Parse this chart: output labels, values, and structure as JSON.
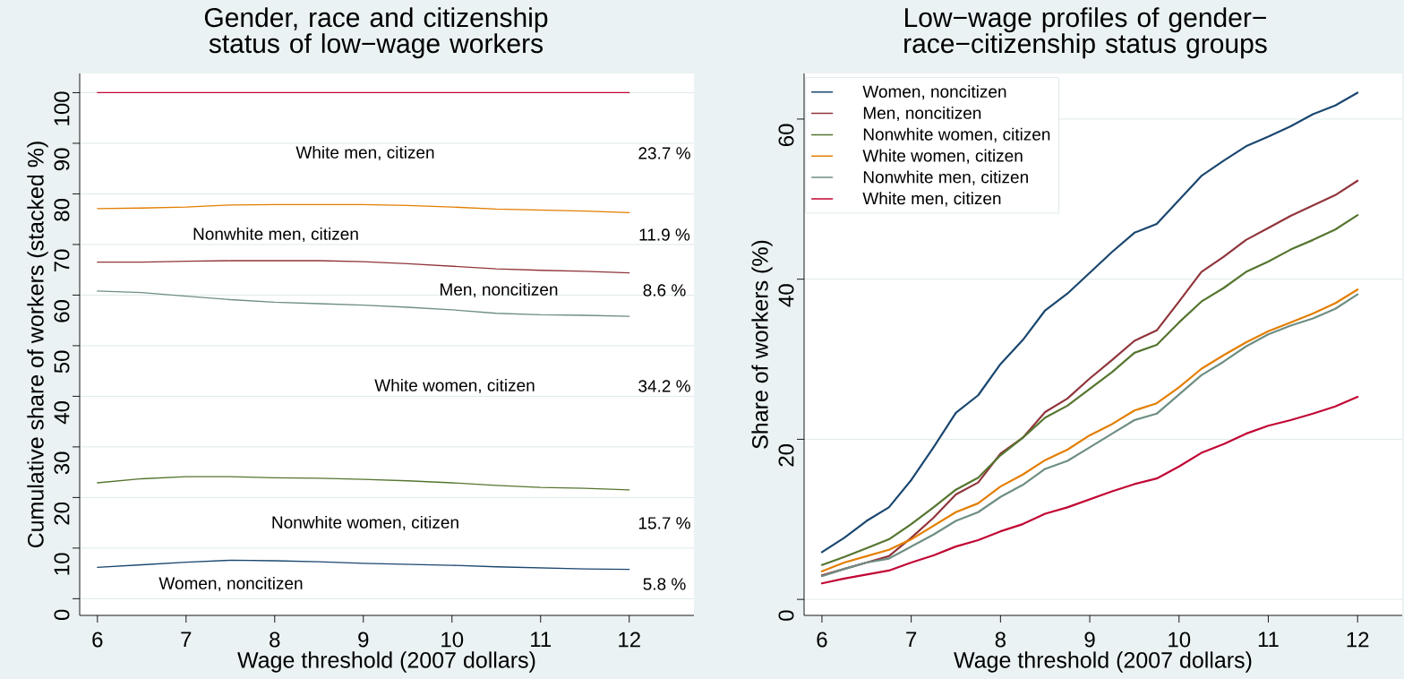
{
  "chart_data": [
    {
      "type": "line",
      "title": "Gender, race and citizenship status of low−wage workers",
      "xlabel": "Wage threshold (2007 dollars)",
      "ylabel": "Cumulative share of workers (stacked %)",
      "x": [
        6,
        6.5,
        7,
        7.5,
        8,
        8.5,
        9,
        9.5,
        10,
        10.5,
        11,
        11.5,
        12
      ],
      "series": [
        {
          "color": "#1a476f",
          "values": [
            6.2,
            6.7,
            7.2,
            7.6,
            7.5,
            7.3,
            7.0,
            6.8,
            6.6,
            6.3,
            6.1,
            5.9,
            5.8
          ]
        },
        {
          "color": "#55752f",
          "values": [
            22.9,
            23.7,
            24.1,
            24.1,
            23.9,
            23.8,
            23.6,
            23.3,
            22.9,
            22.4,
            22.0,
            21.8,
            21.5
          ]
        },
        {
          "color": "#6e8e84",
          "values": [
            60.8,
            60.5,
            59.8,
            59.1,
            58.6,
            58.3,
            58.0,
            57.6,
            57.1,
            56.4,
            56.1,
            56.0,
            55.8
          ]
        },
        {
          "color": "#90353b",
          "values": [
            66.5,
            66.5,
            66.7,
            66.8,
            66.8,
            66.8,
            66.6,
            66.2,
            65.7,
            65.2,
            64.9,
            64.7,
            64.4
          ]
        },
        {
          "color": "#e37e00",
          "values": [
            77.1,
            77.2,
            77.4,
            77.8,
            77.9,
            77.9,
            77.9,
            77.7,
            77.4,
            77.0,
            76.8,
            76.6,
            76.3
          ]
        },
        {
          "color": "#c10534",
          "values": [
            100,
            100,
            100,
            100,
            100,
            100,
            100,
            100,
            100,
            100,
            100,
            100,
            100
          ]
        }
      ],
      "xlim": [
        5.8,
        12.73
      ],
      "ylim": [
        -3.3,
        103.8
      ],
      "xticks": [
        6,
        7,
        8,
        9,
        10,
        11,
        12
      ],
      "yticks": [
        0,
        10,
        20,
        30,
        40,
        50,
        60,
        70,
        80,
        90,
        100
      ],
      "grid": "y",
      "annotations": [
        "White men, citizen",
        "23.7 %",
        "Nonwhite men, citizen",
        "11.9 %",
        "Men, noncitizen",
        "8.6 %",
        "White women, citizen",
        "34.2 %",
        "Nonwhite women, citizen",
        "15.7 %",
        "Women, noncitizen",
        "5.8 %"
      ]
    },
    {
      "type": "line",
      "title": "Low−wage profiles of gender−race−citizenship status groups",
      "xlabel": "Wage threshold (2007 dollars)",
      "ylabel": "Share of workers (%)",
      "x": [
        6,
        6.25,
        6.5,
        6.75,
        7,
        7.25,
        7.5,
        7.75,
        8,
        8.25,
        8.5,
        8.75,
        9,
        9.25,
        9.5,
        9.75,
        10,
        10.25,
        10.5,
        10.75,
        11,
        11.25,
        11.5,
        11.75,
        12
      ],
      "series": [
        {
          "name": "Women, noncitizen",
          "color": "#1a476f",
          "values": [
            5.9,
            7.7,
            9.8,
            11.5,
            14.9,
            19.0,
            23.3,
            25.5,
            29.4,
            32.4,
            36.1,
            38.2,
            40.8,
            43.4,
            45.8,
            46.9,
            49.9,
            52.9,
            54.8,
            56.6,
            57.8,
            59.1,
            60.6,
            61.7,
            63.3
          ]
        },
        {
          "name": "Men, noncitizen",
          "color": "#90353b",
          "values": [
            3.0,
            3.8,
            4.6,
            5.4,
            7.7,
            10.2,
            13.1,
            14.6,
            18.2,
            20.2,
            23.4,
            25.1,
            27.6,
            29.9,
            32.3,
            33.6,
            37.2,
            40.9,
            42.8,
            44.9,
            46.4,
            47.9,
            49.2,
            50.5,
            52.3
          ]
        },
        {
          "name": "Nonwhite women, citizen",
          "color": "#55752f",
          "values": [
            4.3,
            5.3,
            6.4,
            7.5,
            9.4,
            11.5,
            13.7,
            15.2,
            18.0,
            20.2,
            22.7,
            24.2,
            26.3,
            28.4,
            30.8,
            31.8,
            34.6,
            37.2,
            38.9,
            40.9,
            42.2,
            43.7,
            44.9,
            46.2,
            48.0
          ]
        },
        {
          "name": "White women, citizen",
          "color": "#e37e00",
          "values": [
            3.5,
            4.6,
            5.4,
            6.2,
            7.5,
            9.2,
            10.9,
            12.0,
            14.1,
            15.6,
            17.4,
            18.7,
            20.5,
            21.9,
            23.6,
            24.5,
            26.5,
            28.8,
            30.5,
            32.1,
            33.5,
            34.6,
            35.7,
            37.0,
            38.7
          ]
        },
        {
          "name": "Nonwhite men, citizen",
          "color": "#6e8e84",
          "values": [
            2.9,
            3.8,
            4.6,
            5.1,
            6.6,
            8.1,
            9.8,
            10.9,
            12.8,
            14.3,
            16.3,
            17.3,
            19.0,
            20.7,
            22.4,
            23.2,
            25.6,
            28.0,
            29.7,
            31.6,
            33.1,
            34.2,
            35.1,
            36.3,
            38.1
          ]
        },
        {
          "name": "White men, citizen",
          "color": "#c10534",
          "values": [
            2.0,
            2.6,
            3.1,
            3.6,
            4.6,
            5.5,
            6.6,
            7.4,
            8.5,
            9.4,
            10.7,
            11.5,
            12.5,
            13.5,
            14.4,
            15.1,
            16.6,
            18.3,
            19.4,
            20.7,
            21.7,
            22.4,
            23.2,
            24.1,
            25.3
          ]
        }
      ],
      "xlim": [
        5.8,
        12.5
      ],
      "ylim": [
        -2,
        65.7
      ],
      "xticks": [
        6,
        7,
        8,
        9,
        10,
        11,
        12
      ],
      "yticks": [
        0,
        20,
        40,
        60
      ],
      "grid": "y",
      "legend": "top left"
    }
  ]
}
